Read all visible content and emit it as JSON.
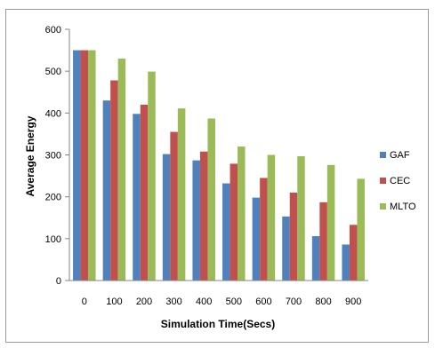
{
  "chart_data": {
    "type": "bar",
    "categories": [
      "0",
      "100",
      "200",
      "300",
      "400",
      "500",
      "600",
      "700",
      "800",
      "900"
    ],
    "series": [
      {
        "name": "GAF",
        "color": "#4f81bd",
        "values": [
          550,
          430,
          398,
          302,
          287,
          232,
          198,
          153,
          106,
          86
        ]
      },
      {
        "name": "CEC",
        "color": "#c0504d",
        "values": [
          550,
          478,
          420,
          355,
          308,
          279,
          245,
          210,
          187,
          133
        ]
      },
      {
        "name": "MLTO",
        "color": "#9bbb59",
        "values": [
          550,
          530,
          499,
          411,
          387,
          320,
          300,
          297,
          276,
          243
        ]
      }
    ],
    "title": "",
    "xlabel": "Simulation Time(Secs)",
    "ylabel": "Average Energy",
    "ylim": [
      0,
      600
    ],
    "yticks": [
      "0",
      "100",
      "200",
      "300",
      "400",
      "500",
      "600"
    ],
    "grid": false,
    "legend_position": "right"
  }
}
